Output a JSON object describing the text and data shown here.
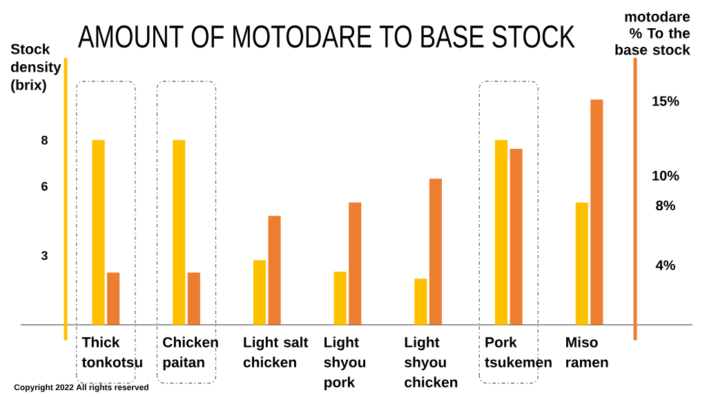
{
  "chart_data": {
    "type": "bar",
    "title": "AMOUNT OF MOTODARE TO BASE STOCK",
    "ylabel": "Stock density (brix)",
    "y2label": "motodare % To the base stock",
    "categories": [
      "Thick tonkotsu",
      "Chicken paitan",
      "Light salt chicken",
      "Light shyou pork",
      "Light shyou chicken",
      "Pork tsukemen",
      "Miso ramen"
    ],
    "series": [
      {
        "color": "#ffc000",
        "values": [
          8,
          8,
          2.8,
          2.3,
          2.0,
          8,
          5.3
        ]
      },
      {
        "color": "#ed7d31",
        "axis": "y2",
        "values": [
          3.5,
          3.5,
          7.3,
          8.2,
          9.8,
          11.8,
          15.1
        ]
      }
    ],
    "ylim": [
      -0.6,
      11.5
    ],
    "yticks": [
      3,
      6,
      8
    ],
    "y2lim": [
      -0.93,
      17.8
    ],
    "y2ticks": [
      {
        "value": 4,
        "label": "4%"
      },
      {
        "value": 8,
        "label": "8%"
      },
      {
        "value": 10,
        "label": "10%"
      },
      {
        "value": 15,
        "label": "15%"
      }
    ],
    "annotations": [
      "Copyright 2022 All rights reserved"
    ]
  }
}
